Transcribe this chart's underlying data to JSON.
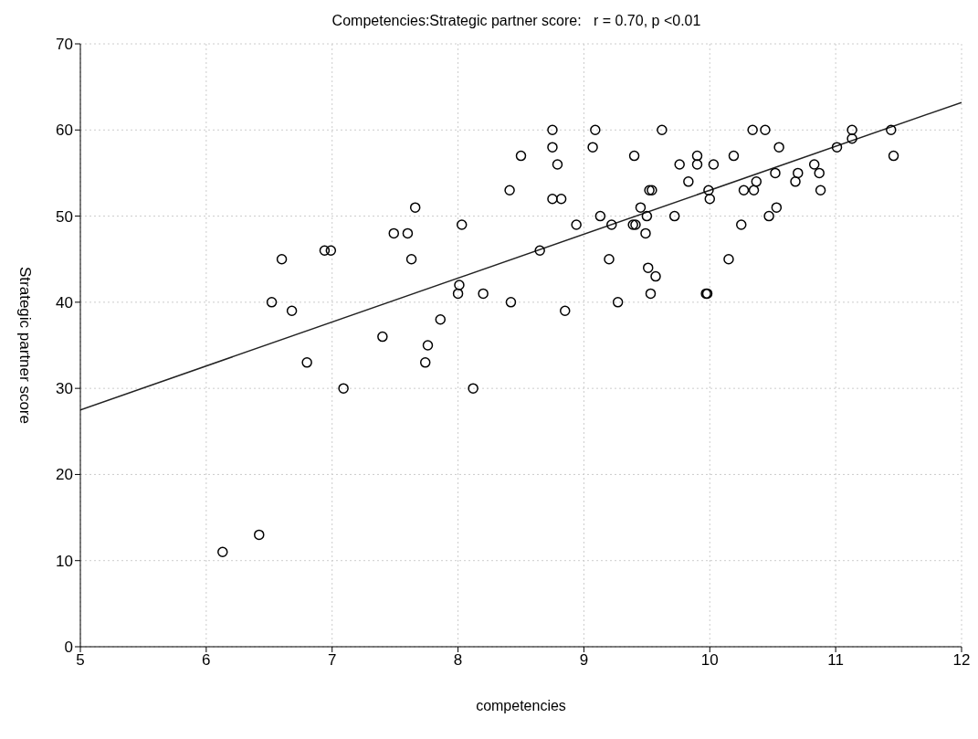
{
  "chart_data": {
    "type": "scatter",
    "title": "Competencies:Strategic partner score:   r = 0.70, p <0.01",
    "xlabel": "competencies",
    "ylabel": "Strategic partner score",
    "xlim": [
      5,
      12
    ],
    "xticks": [
      5,
      6,
      7,
      8,
      9,
      10,
      11,
      12
    ],
    "ylim": [
      0,
      70
    ],
    "yticks": [
      0,
      10,
      20,
      30,
      40,
      50,
      60,
      70
    ],
    "grid": true,
    "series": [
      {
        "marker": "circle",
        "color": "#000000",
        "x": [
          6.13,
          6.42,
          6.52,
          6.6,
          6.68,
          6.8,
          6.94,
          6.99,
          7.09,
          7.4,
          7.49,
          7.6,
          7.63,
          7.66,
          7.74,
          7.76,
          7.86,
          8.0,
          8.01,
          8.03,
          8.12,
          8.2,
          8.41,
          8.42,
          8.5,
          8.65,
          8.75,
          8.75,
          8.75,
          8.79,
          8.82,
          8.85,
          8.94,
          9.07,
          9.09,
          9.13,
          9.2,
          9.22,
          9.27,
          9.39,
          9.4,
          9.41,
          9.45,
          9.49,
          9.5,
          9.51,
          9.52,
          9.54,
          9.53,
          9.57,
          9.62,
          9.72,
          9.76,
          9.83,
          9.9,
          9.9,
          9.97,
          9.98,
          9.99,
          10.0,
          10.03,
          10.15,
          10.19,
          10.25,
          10.27,
          10.34,
          10.35,
          10.37,
          10.44,
          10.47,
          10.52,
          10.53,
          10.55,
          10.68,
          10.7,
          10.83,
          10.87,
          10.88,
          11.01,
          11.13,
          11.13,
          11.44,
          11.46
        ],
        "values": [
          11,
          13,
          40,
          45,
          39,
          33,
          46,
          46,
          30,
          36,
          48,
          48,
          45,
          51,
          33,
          35,
          38,
          41,
          42,
          49,
          30,
          41,
          53,
          40,
          57,
          46,
          60,
          58,
          52,
          56,
          52,
          39,
          49,
          58,
          60,
          50,
          45,
          49,
          40,
          49,
          57,
          49,
          51,
          48,
          50,
          44,
          53,
          53,
          41,
          43,
          60,
          50,
          56,
          54,
          57,
          56,
          41,
          41,
          53,
          52,
          56,
          45,
          57,
          49,
          53,
          60,
          53,
          54,
          60,
          50,
          55,
          51,
          58,
          54,
          55,
          56,
          55,
          53,
          58,
          60,
          59,
          60,
          57
        ]
      },
      {
        "type": "line",
        "marker": "none",
        "color": "#222222",
        "x": [
          5,
          12
        ],
        "values": [
          27.5,
          63.2
        ]
      }
    ]
  }
}
